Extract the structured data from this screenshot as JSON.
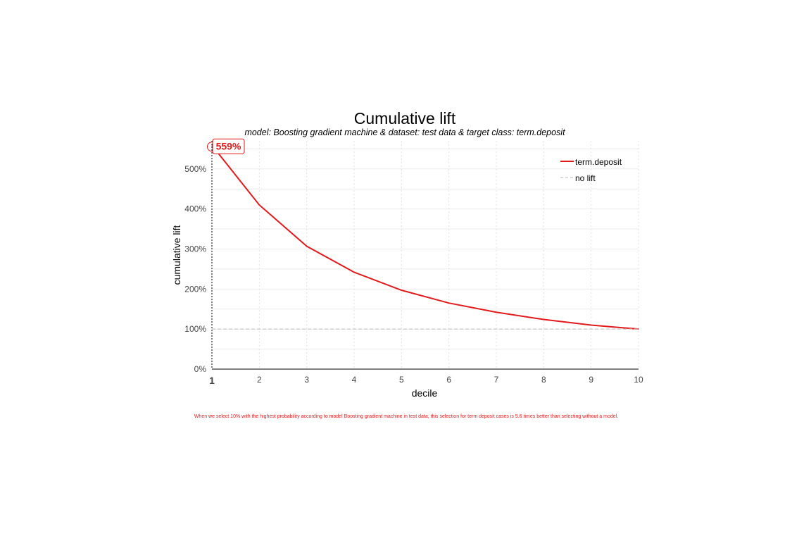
{
  "chart_data": {
    "type": "line",
    "title": "Cumulative lift",
    "subtitle": "model: Boosting gradient machine  &  dataset: test data  &  target class: term.deposit",
    "xlabel": "decile",
    "ylabel": "cumulative lift",
    "x": [
      1,
      2,
      3,
      4,
      5,
      6,
      7,
      8,
      9,
      10
    ],
    "xtick_labels": [
      "1",
      "2",
      "3",
      "4",
      "5",
      "6",
      "7",
      "8",
      "9",
      "10"
    ],
    "ytick_labels": [
      "0%",
      "100%",
      "200%",
      "300%",
      "400%",
      "500%"
    ],
    "ytick_values": [
      0,
      100,
      200,
      300,
      400,
      500
    ],
    "xlim": [
      1,
      10
    ],
    "ylim": [
      0,
      570
    ],
    "grid": true,
    "legend_position": "top-right",
    "series": [
      {
        "name": "term.deposit",
        "color": "#e31a1c",
        "style": "solid",
        "values": [
          559,
          410,
          307,
          242,
          197,
          165,
          142,
          124,
          110,
          100
        ]
      },
      {
        "name": "no lift",
        "color": "#c8c8c8",
        "style": "dashed",
        "values": [
          100,
          100,
          100,
          100,
          100,
          100,
          100,
          100,
          100,
          100
        ]
      }
    ],
    "callout": {
      "x": 1,
      "y": 559,
      "label": "559%"
    },
    "annotation": "When we select 10% with the highest probability according to model Boosting gradient machine in test data, this selection for term deposit cases is 5.6 times better than selecting without a model."
  }
}
